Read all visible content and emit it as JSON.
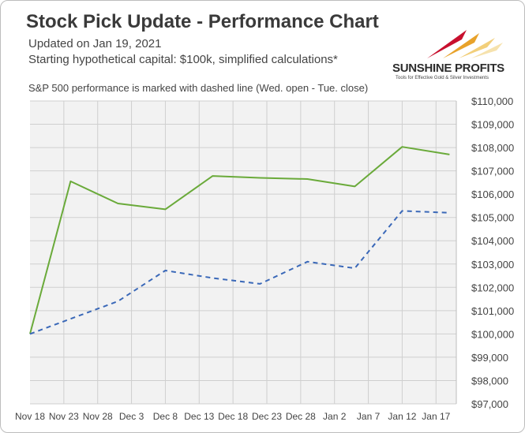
{
  "header": {
    "title": "Stock Pick Update - Performance Chart",
    "updated": "Updated on Jan 19, 2021",
    "capital": "Starting hypothetical capital: $100k, simplified calculations*",
    "note": "S&P 500 performance is marked with dashed line (Wed. open - Tue. close)"
  },
  "logo": {
    "name": "SUNSHINE PROFITS",
    "tagline": "Tools for Effective Gold & Silver Investments"
  },
  "colors": {
    "portfolio": "#6aaa3a",
    "sp500": "#3a68b8",
    "plot_bg": "#f2f2f2",
    "grid": "#cfcfcf"
  },
  "chart_data": {
    "type": "line",
    "x": [
      "Nov 18",
      "Nov 23",
      "Nov 28",
      "Dec 3",
      "Dec 8",
      "Dec 13",
      "Dec 18",
      "Dec 23",
      "Dec 28",
      "Jan 2",
      "Jan 7",
      "Jan 12",
      "Jan 17"
    ],
    "ylim": [
      97000,
      110000
    ],
    "yticks": [
      97000,
      98000,
      99000,
      100000,
      101000,
      102000,
      103000,
      104000,
      105000,
      106000,
      107000,
      108000,
      109000,
      110000
    ],
    "ytick_labels": [
      "$97,000",
      "$98,000",
      "$99,000",
      "$100,000",
      "$101,000",
      "$102,000",
      "$103,000",
      "$104,000",
      "$105,000",
      "$106,000",
      "$107,000",
      "$108,000",
      "$109,000",
      "$110,000"
    ],
    "xlim": [
      "2020-11-18",
      "2021-01-20"
    ],
    "grid": true,
    "y_axis_position": "right",
    "series": [
      {
        "style": "solid",
        "points": [
          [
            "2020-11-18",
            100000
          ],
          [
            "2020-11-24",
            106550
          ],
          [
            "2020-12-01",
            105600
          ],
          [
            "2020-12-08",
            105350
          ],
          [
            "2020-12-15",
            106780
          ],
          [
            "2020-12-22",
            106700
          ],
          [
            "2020-12-29",
            106650
          ],
          [
            "2021-01-05",
            106330
          ],
          [
            "2021-01-12",
            108030
          ],
          [
            "2021-01-19",
            107700
          ]
        ]
      },
      {
        "style": "dashed",
        "points": [
          [
            "2020-11-18",
            100000
          ],
          [
            "2020-11-24",
            100650
          ],
          [
            "2020-12-01",
            101400
          ],
          [
            "2020-12-08",
            102720
          ],
          [
            "2020-12-15",
            102400
          ],
          [
            "2020-12-22",
            102150
          ],
          [
            "2020-12-29",
            103100
          ],
          [
            "2021-01-05",
            102820
          ],
          [
            "2021-01-12",
            105280
          ],
          [
            "2021-01-19",
            105200
          ]
        ]
      }
    ]
  }
}
